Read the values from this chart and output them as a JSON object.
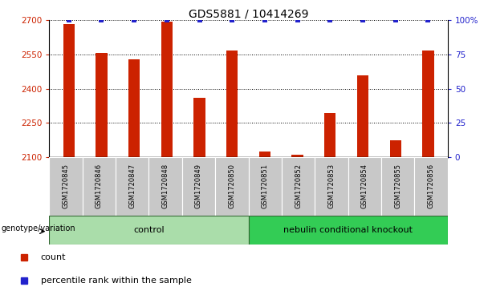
{
  "title": "GDS5881 / 10414269",
  "samples": [
    "GSM1720845",
    "GSM1720846",
    "GSM1720847",
    "GSM1720848",
    "GSM1720849",
    "GSM1720850",
    "GSM1720851",
    "GSM1720852",
    "GSM1720853",
    "GSM1720854",
    "GSM1720855",
    "GSM1720856"
  ],
  "counts": [
    2685,
    2558,
    2530,
    2695,
    2360,
    2567,
    2123,
    2110,
    2295,
    2460,
    2175,
    2567
  ],
  "percentiles": [
    100,
    100,
    100,
    100,
    100,
    100,
    100,
    100,
    100,
    100,
    100,
    100
  ],
  "ylim_left": [
    2100,
    2700
  ],
  "ylim_right": [
    0,
    100
  ],
  "yticks_left": [
    2100,
    2250,
    2400,
    2550,
    2700
  ],
  "yticks_right": [
    0,
    25,
    50,
    75,
    100
  ],
  "ytick_labels_right": [
    "0",
    "25",
    "50",
    "75",
    "100%"
  ],
  "bar_color": "#CC2200",
  "percentile_color": "#2222CC",
  "grid_color": "#000000",
  "title_fontsize": 10,
  "groups": [
    {
      "label": "control",
      "start": 0,
      "end": 5,
      "color": "#AADDAA"
    },
    {
      "label": "nebulin conditional knockout",
      "start": 6,
      "end": 11,
      "color": "#33CC55"
    }
  ],
  "group_label_prefix": "genotype/variation",
  "legend_items": [
    {
      "label": "count",
      "color": "#CC2200"
    },
    {
      "label": "percentile rank within the sample",
      "color": "#2222CC"
    }
  ],
  "sample_label_bg": "#C8C8C8",
  "plot_bg_color": "#FFFFFF"
}
